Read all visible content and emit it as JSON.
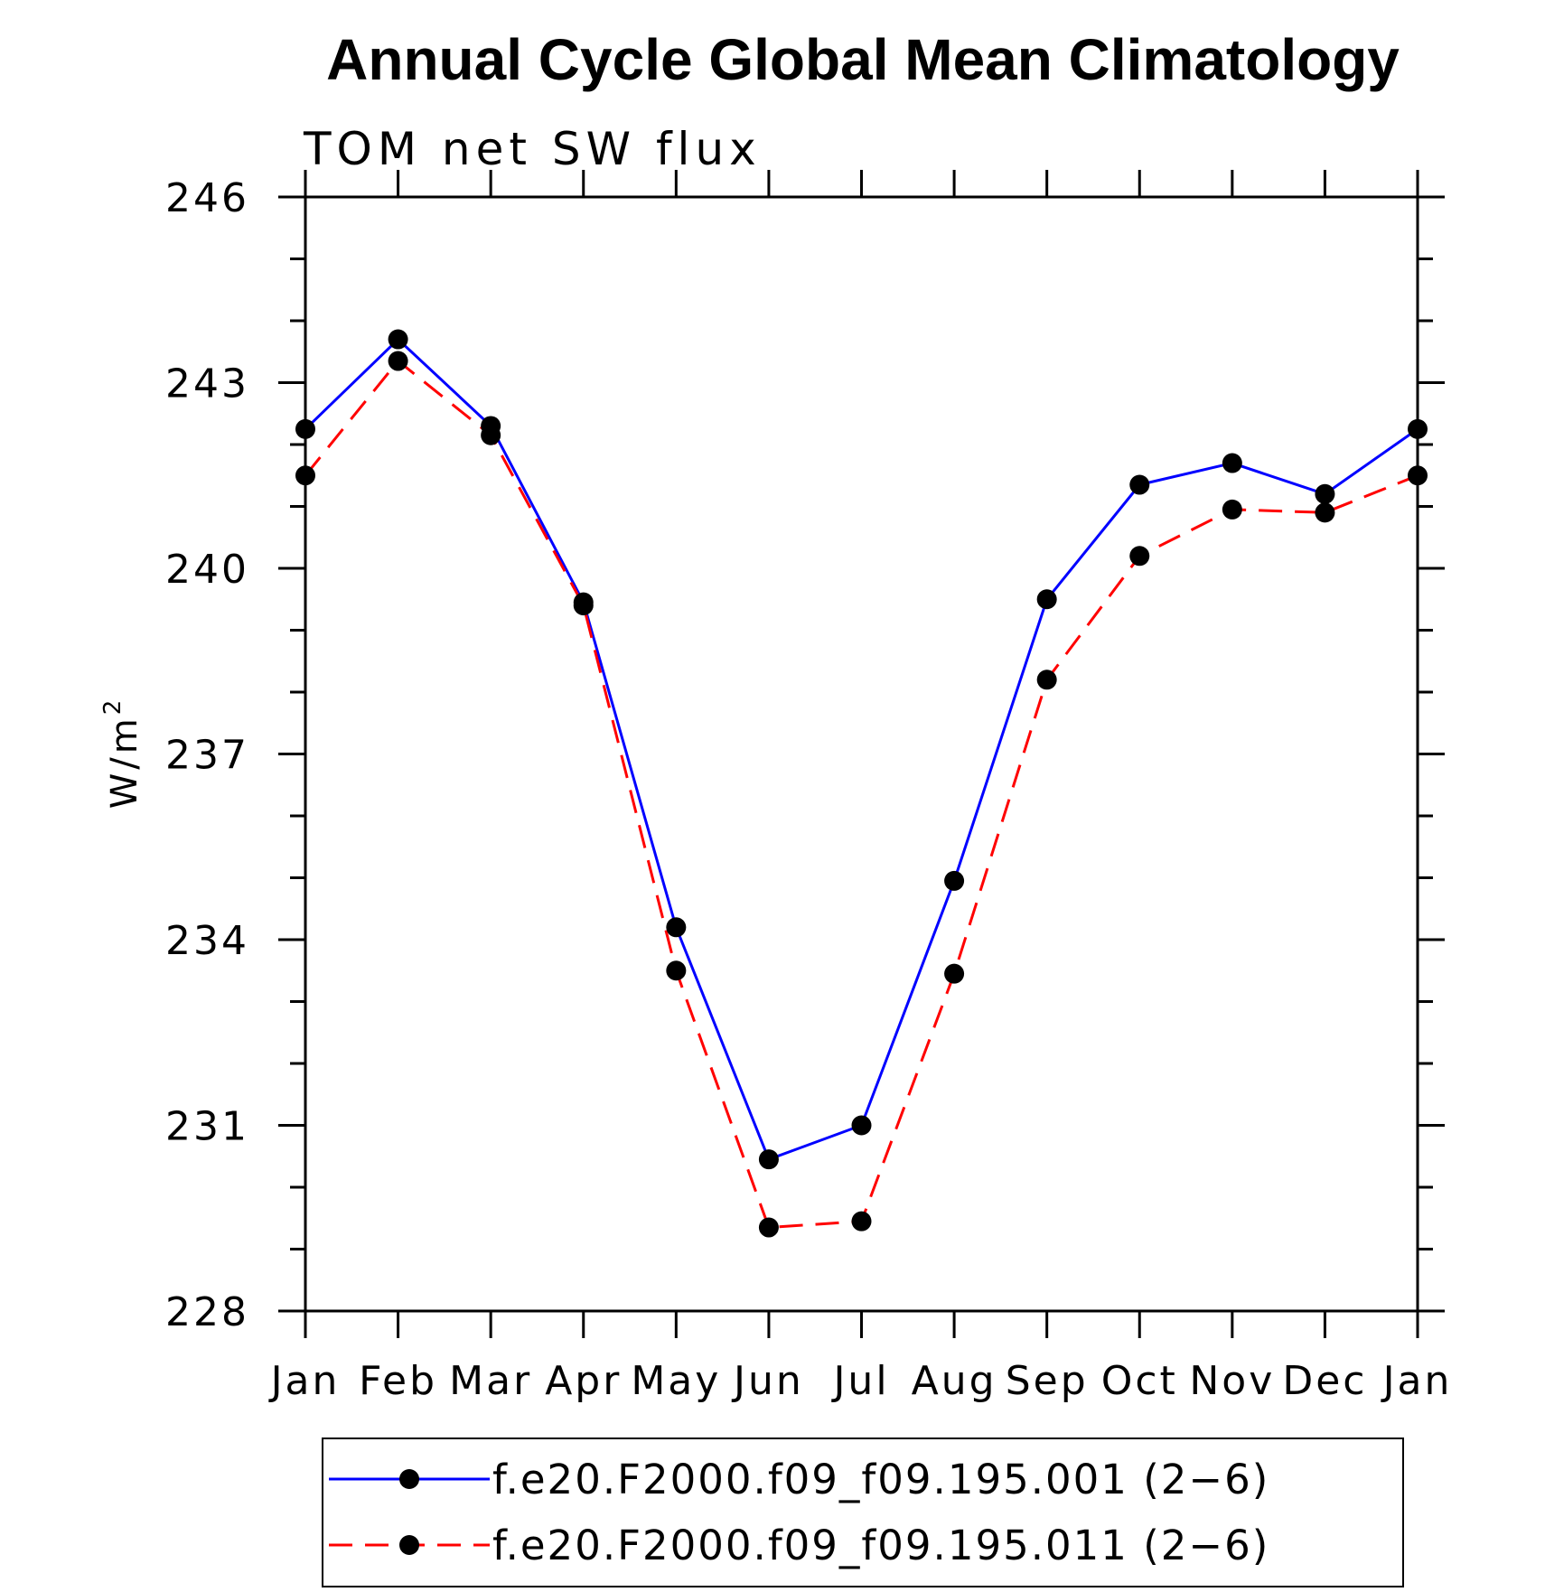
{
  "chart_data": {
    "type": "line",
    "title": "Annual Cycle Global Mean Climatology",
    "subtitle": "TOM net SW flux",
    "ylabel_base": "W/m",
    "ylabel_sup": "2",
    "xlabel": "",
    "categories": [
      "Jan",
      "Feb",
      "Mar",
      "Apr",
      "May",
      "Jun",
      "Jul",
      "Aug",
      "Sep",
      "Oct",
      "Nov",
      "Dec",
      "Jan"
    ],
    "ylim": [
      228,
      246
    ],
    "yticks": [
      228,
      231,
      234,
      237,
      240,
      243,
      246
    ],
    "yticks_display": [
      "228",
      "231",
      "234",
      "237",
      "240",
      "243",
      "246"
    ],
    "series": [
      {
        "name": "f.e20.F2000.f09_f09.195.001 (2−6)",
        "color": "#0000ff",
        "line_style": "solid",
        "marker": "filled-circle",
        "values": [
          242.25,
          243.7,
          242.3,
          239.45,
          234.2,
          230.45,
          231.0,
          234.95,
          239.5,
          241.35,
          241.7,
          241.2,
          242.25
        ]
      },
      {
        "name": "f.e20.F2000.f09_f09.195.011 (2−6)",
        "color": "#ff0000",
        "line_style": "dashed",
        "marker": "filled-circle",
        "values": [
          241.5,
          243.35,
          242.15,
          239.4,
          233.5,
          229.35,
          229.45,
          233.45,
          238.2,
          240.2,
          240.95,
          240.9,
          241.5
        ]
      }
    ],
    "legend_position": "bottom"
  }
}
